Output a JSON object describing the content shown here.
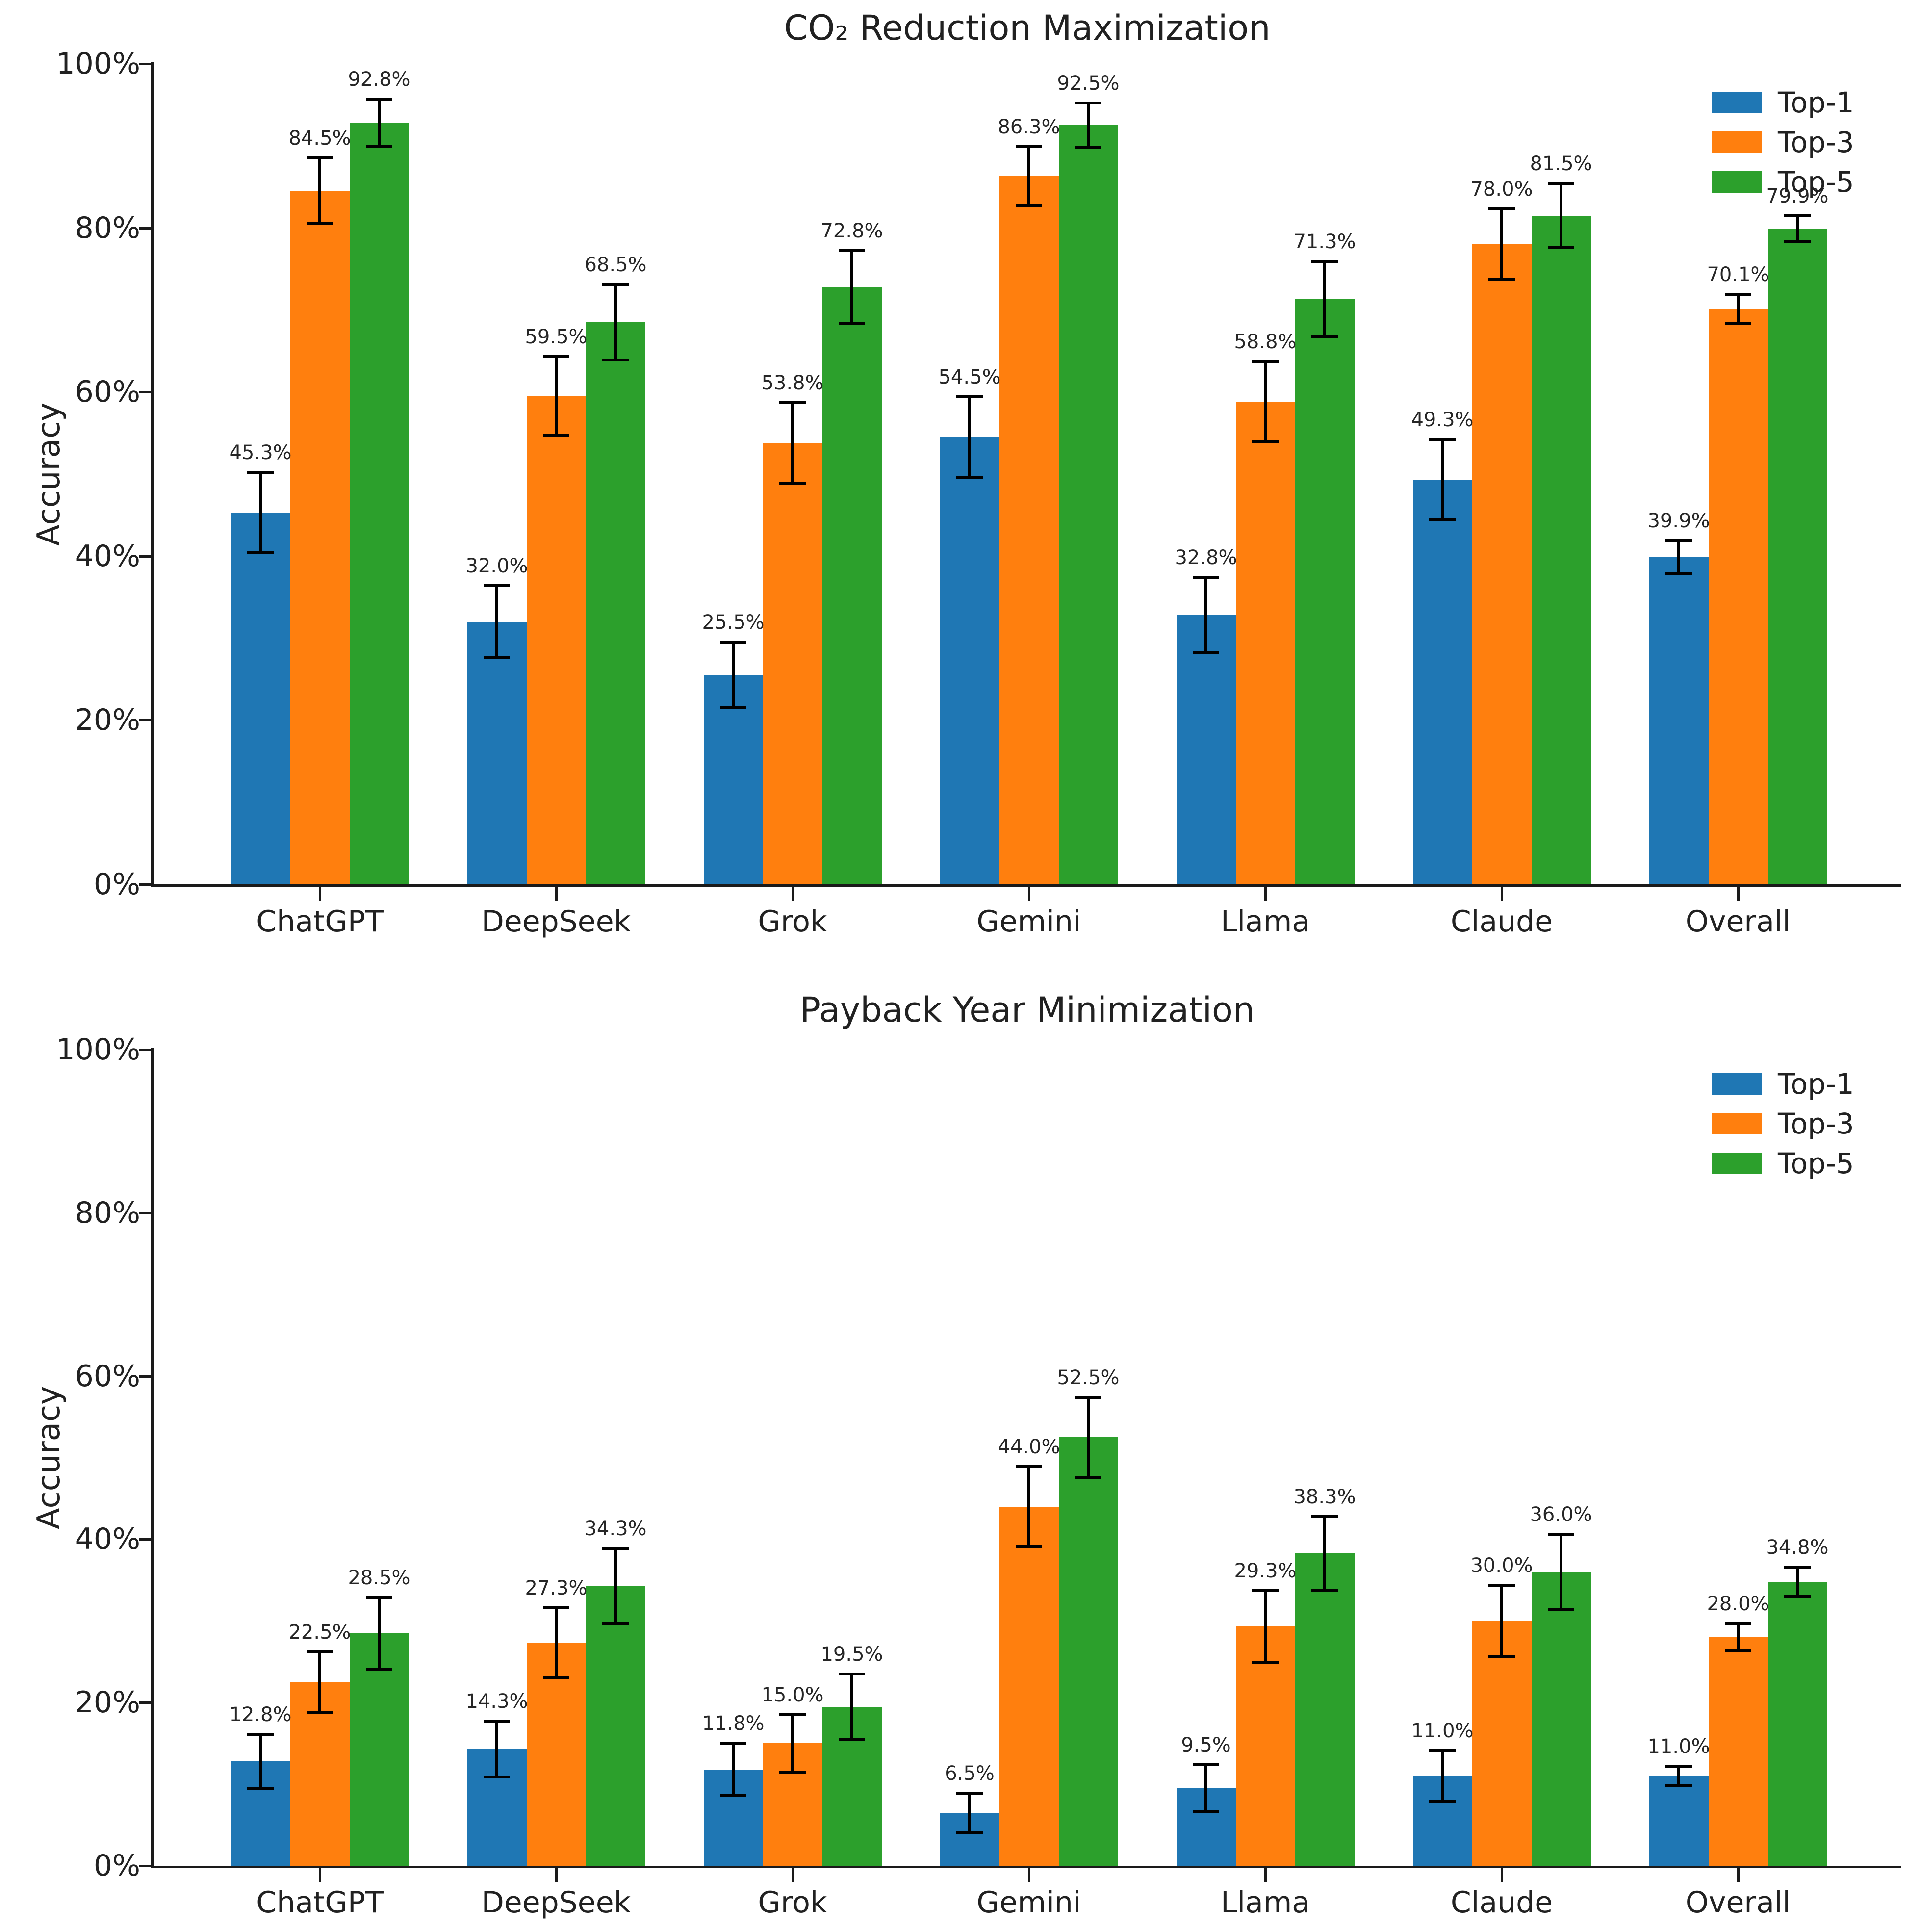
{
  "page": {
    "background": "#ffffff",
    "text_color": "#212121"
  },
  "chart_data": [
    {
      "type": "bar",
      "title": "CO₂ Reduction Maximization",
      "ylabel": "Accuracy",
      "xlabel": "",
      "ylim": [
        0,
        100
      ],
      "yticks": [
        0,
        20,
        40,
        60,
        80,
        100
      ],
      "ytick_labels": [
        "0%",
        "20%",
        "40%",
        "60%",
        "80%",
        "100%"
      ],
      "grid": false,
      "legend": {
        "position": "upper right",
        "frame": false,
        "entries": [
          "Top-1",
          "Top-3",
          "Top-5"
        ]
      },
      "categories": [
        "ChatGPT",
        "DeepSeek",
        "Grok",
        "Gemini",
        "Llama",
        "Claude",
        "Overall"
      ],
      "series": [
        {
          "name": "Top-1",
          "color": "#1f77b4",
          "values": [
            45.3,
            32.0,
            25.5,
            54.5,
            32.8,
            49.3,
            39.9
          ],
          "errors": [
            4.9,
            4.4,
            4.0,
            4.9,
            4.6,
            4.9,
            2.0
          ],
          "labels": [
            "45.3%",
            "32.0%",
            "25.5%",
            "54.5%",
            "32.8%",
            "49.3%",
            "39.9%"
          ]
        },
        {
          "name": "Top-3",
          "color": "#ff7f0e",
          "values": [
            84.5,
            59.5,
            53.8,
            86.3,
            58.8,
            78.0,
            70.1
          ],
          "errors": [
            4.0,
            4.8,
            4.9,
            3.6,
            4.9,
            4.3,
            1.8
          ],
          "labels": [
            "84.5%",
            "59.5%",
            "53.8%",
            "86.3%",
            "58.8%",
            "78.0%",
            "70.1%"
          ]
        },
        {
          "name": "Top-5",
          "color": "#2ca02c",
          "values": [
            92.8,
            68.5,
            72.8,
            92.5,
            71.3,
            81.5,
            79.9
          ],
          "errors": [
            2.9,
            4.6,
            4.4,
            2.7,
            4.6,
            3.9,
            1.6
          ],
          "labels": [
            "92.8%",
            "68.5%",
            "72.8%",
            "92.5%",
            "71.3%",
            "81.5%",
            "79.9%"
          ]
        }
      ]
    },
    {
      "type": "bar",
      "title": "Payback Year Minimization",
      "ylabel": "Accuracy",
      "xlabel": "",
      "ylim": [
        0,
        100
      ],
      "yticks": [
        0,
        20,
        40,
        60,
        80,
        100
      ],
      "ytick_labels": [
        "0%",
        "20%",
        "40%",
        "60%",
        "80%",
        "100%"
      ],
      "grid": false,
      "legend": {
        "position": "upper right",
        "frame": false,
        "entries": [
          "Top-1",
          "Top-3",
          "Top-5"
        ]
      },
      "categories": [
        "ChatGPT",
        "DeepSeek",
        "Grok",
        "Gemini",
        "Llama",
        "Claude",
        "Overall"
      ],
      "series": [
        {
          "name": "Top-1",
          "color": "#1f77b4",
          "values": [
            12.8,
            14.3,
            11.8,
            6.5,
            9.5,
            11.0,
            11.0
          ],
          "errors": [
            3.3,
            3.4,
            3.2,
            2.4,
            2.9,
            3.1,
            1.2
          ],
          "labels": [
            "12.8%",
            "14.3%",
            "11.8%",
            "6.5%",
            "9.5%",
            "11.0%",
            "11.0%"
          ]
        },
        {
          "name": "Top-3",
          "color": "#ff7f0e",
          "values": [
            22.5,
            27.3,
            15.0,
            44.0,
            29.3,
            30.0,
            28.0
          ],
          "errors": [
            3.7,
            4.3,
            3.5,
            4.9,
            4.4,
            4.4,
            1.7
          ],
          "labels": [
            "22.5%",
            "27.3%",
            "15.0%",
            "44.0%",
            "29.3%",
            "30.0%",
            "28.0%"
          ]
        },
        {
          "name": "Top-5",
          "color": "#2ca02c",
          "values": [
            28.5,
            34.3,
            19.5,
            52.5,
            38.3,
            36.0,
            34.8
          ],
          "errors": [
            4.4,
            4.6,
            4.0,
            4.9,
            4.5,
            4.6,
            1.8
          ],
          "labels": [
            "28.5%",
            "34.3%",
            "19.5%",
            "52.5%",
            "38.3%",
            "36.0%",
            "34.8%"
          ]
        }
      ]
    }
  ]
}
